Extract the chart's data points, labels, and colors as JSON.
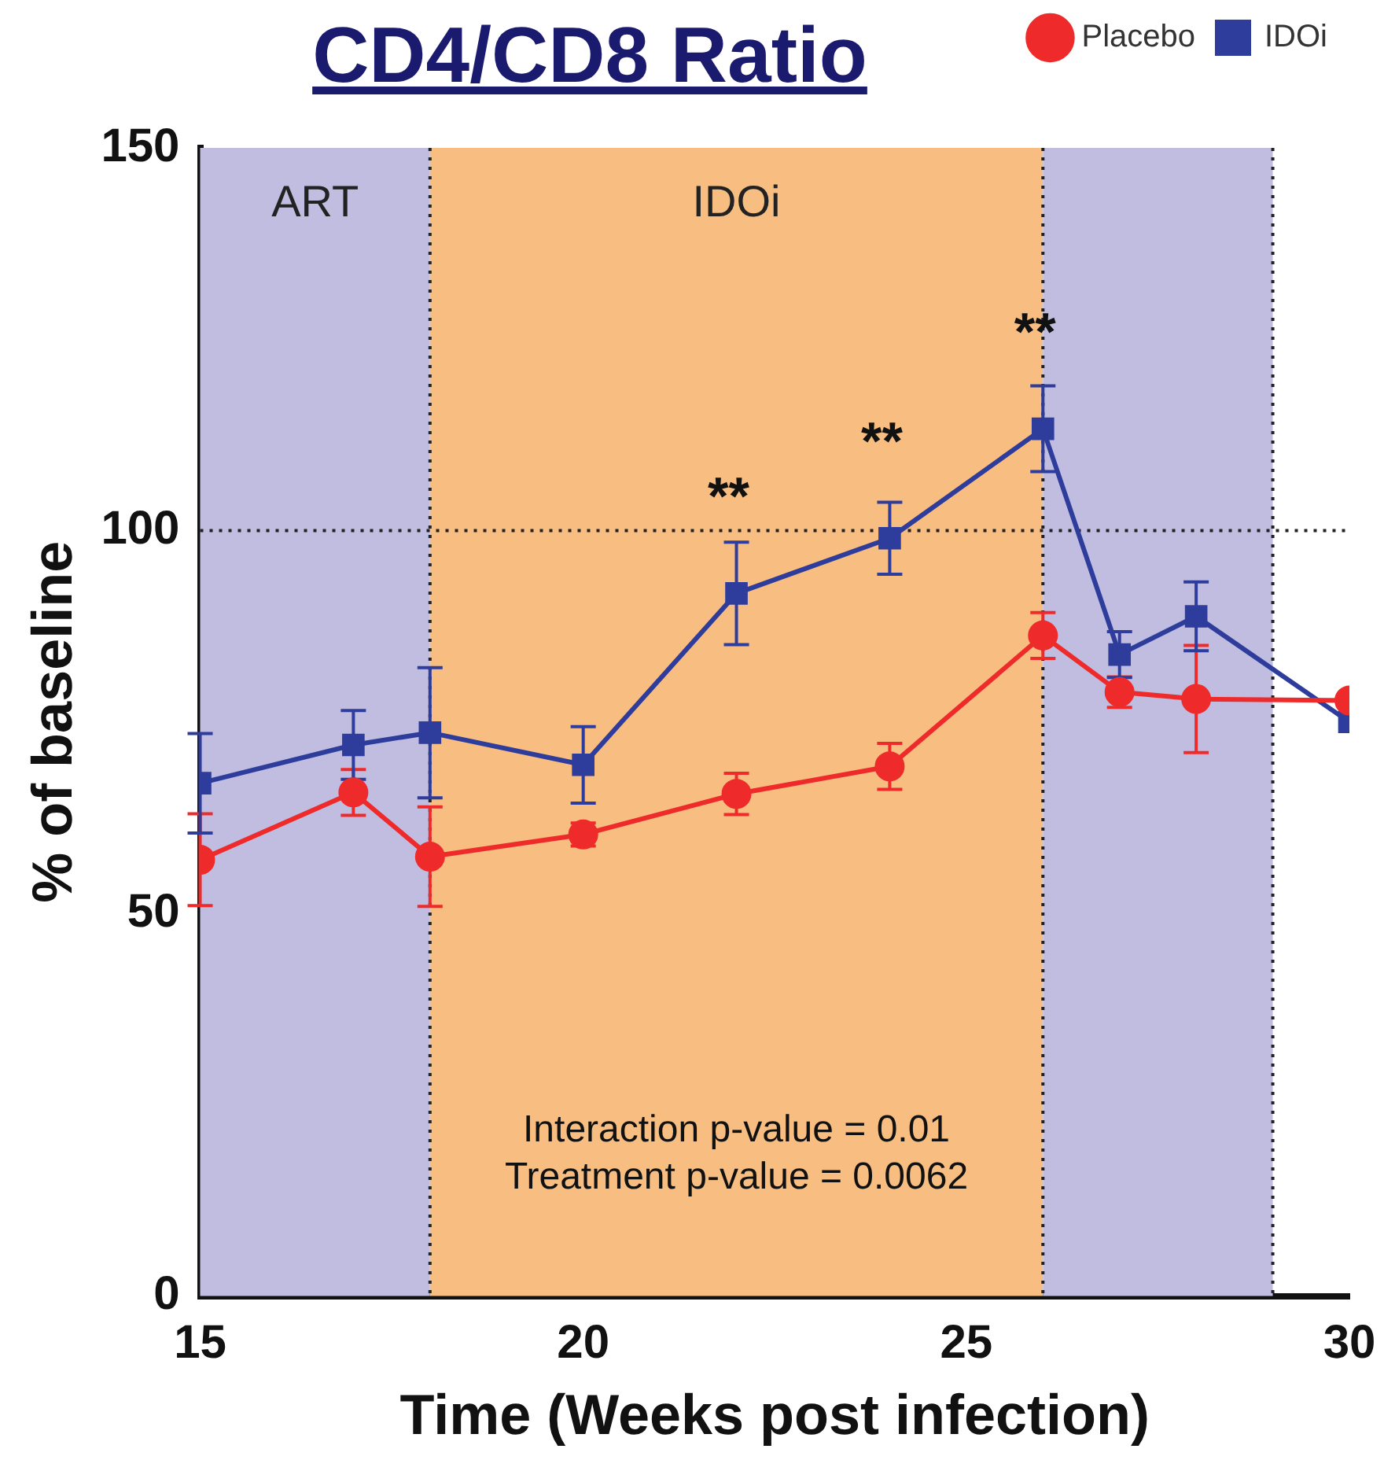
{
  "chart_data": {
    "type": "line",
    "title": "CD4/CD8 Ratio",
    "xlabel": "Time (Weeks post infection)",
    "ylabel": "% of baseline",
    "x": [
      15,
      17,
      18,
      20,
      22,
      24,
      26,
      27,
      28,
      30
    ],
    "series": [
      {
        "name": "Placebo",
        "color": "#ee2a2a",
        "marker": "circle",
        "values": [
          57,
          65.8,
          57.4,
          60.3,
          65.6,
          69.2,
          86.3,
          78.9,
          78,
          77.8
        ],
        "errors": [
          6,
          3,
          6.5,
          1.5,
          2.7,
          3,
          3,
          2,
          7,
          null
        ]
      },
      {
        "name": "IDOi",
        "color": "#2e3c9c",
        "marker": "square",
        "values": [
          67,
          72,
          73.6,
          69.4,
          91.8,
          99,
          113.3,
          83.8,
          88.8,
          75
        ],
        "errors": [
          6.5,
          4.5,
          8.5,
          5,
          6.7,
          4.7,
          5.6,
          3,
          4.5,
          null
        ]
      }
    ],
    "xlim": [
      15,
      30
    ],
    "xticks": [
      15,
      20,
      25,
      30
    ],
    "ylim": [
      0,
      150
    ],
    "yticks": [
      0,
      50,
      100,
      150
    ],
    "grid": false,
    "legend": "top right",
    "line_style": "solid",
    "bands": [
      {
        "axis": "x",
        "from": 15,
        "to": 18,
        "label": "ART",
        "color": "#c0bde0"
      },
      {
        "axis": "x",
        "from": 18,
        "to": 26,
        "label": "IDOi",
        "color": "#f8bd80"
      },
      {
        "axis": "x",
        "from": 26,
        "to": 29,
        "color": "#c0bde0"
      }
    ],
    "ref_lines": [
      {
        "axis": "x",
        "value": 18,
        "line_style": "dotted"
      },
      {
        "axis": "x",
        "value": 26,
        "line_style": "dotted"
      },
      {
        "axis": "x",
        "value": 29,
        "line_style": "dotted"
      },
      {
        "axis": "y",
        "value": 100,
        "line_style": "dotted"
      }
    ],
    "annotations": [
      {
        "text": "**",
        "x": 22,
        "y": 91.8
      },
      {
        "text": "**",
        "x": 24,
        "y": 99
      },
      {
        "text": "**",
        "x": 26,
        "y": 113.3
      },
      "Interaction p-value = 0.01\nTreatment p-value = 0.0062"
    ]
  }
}
